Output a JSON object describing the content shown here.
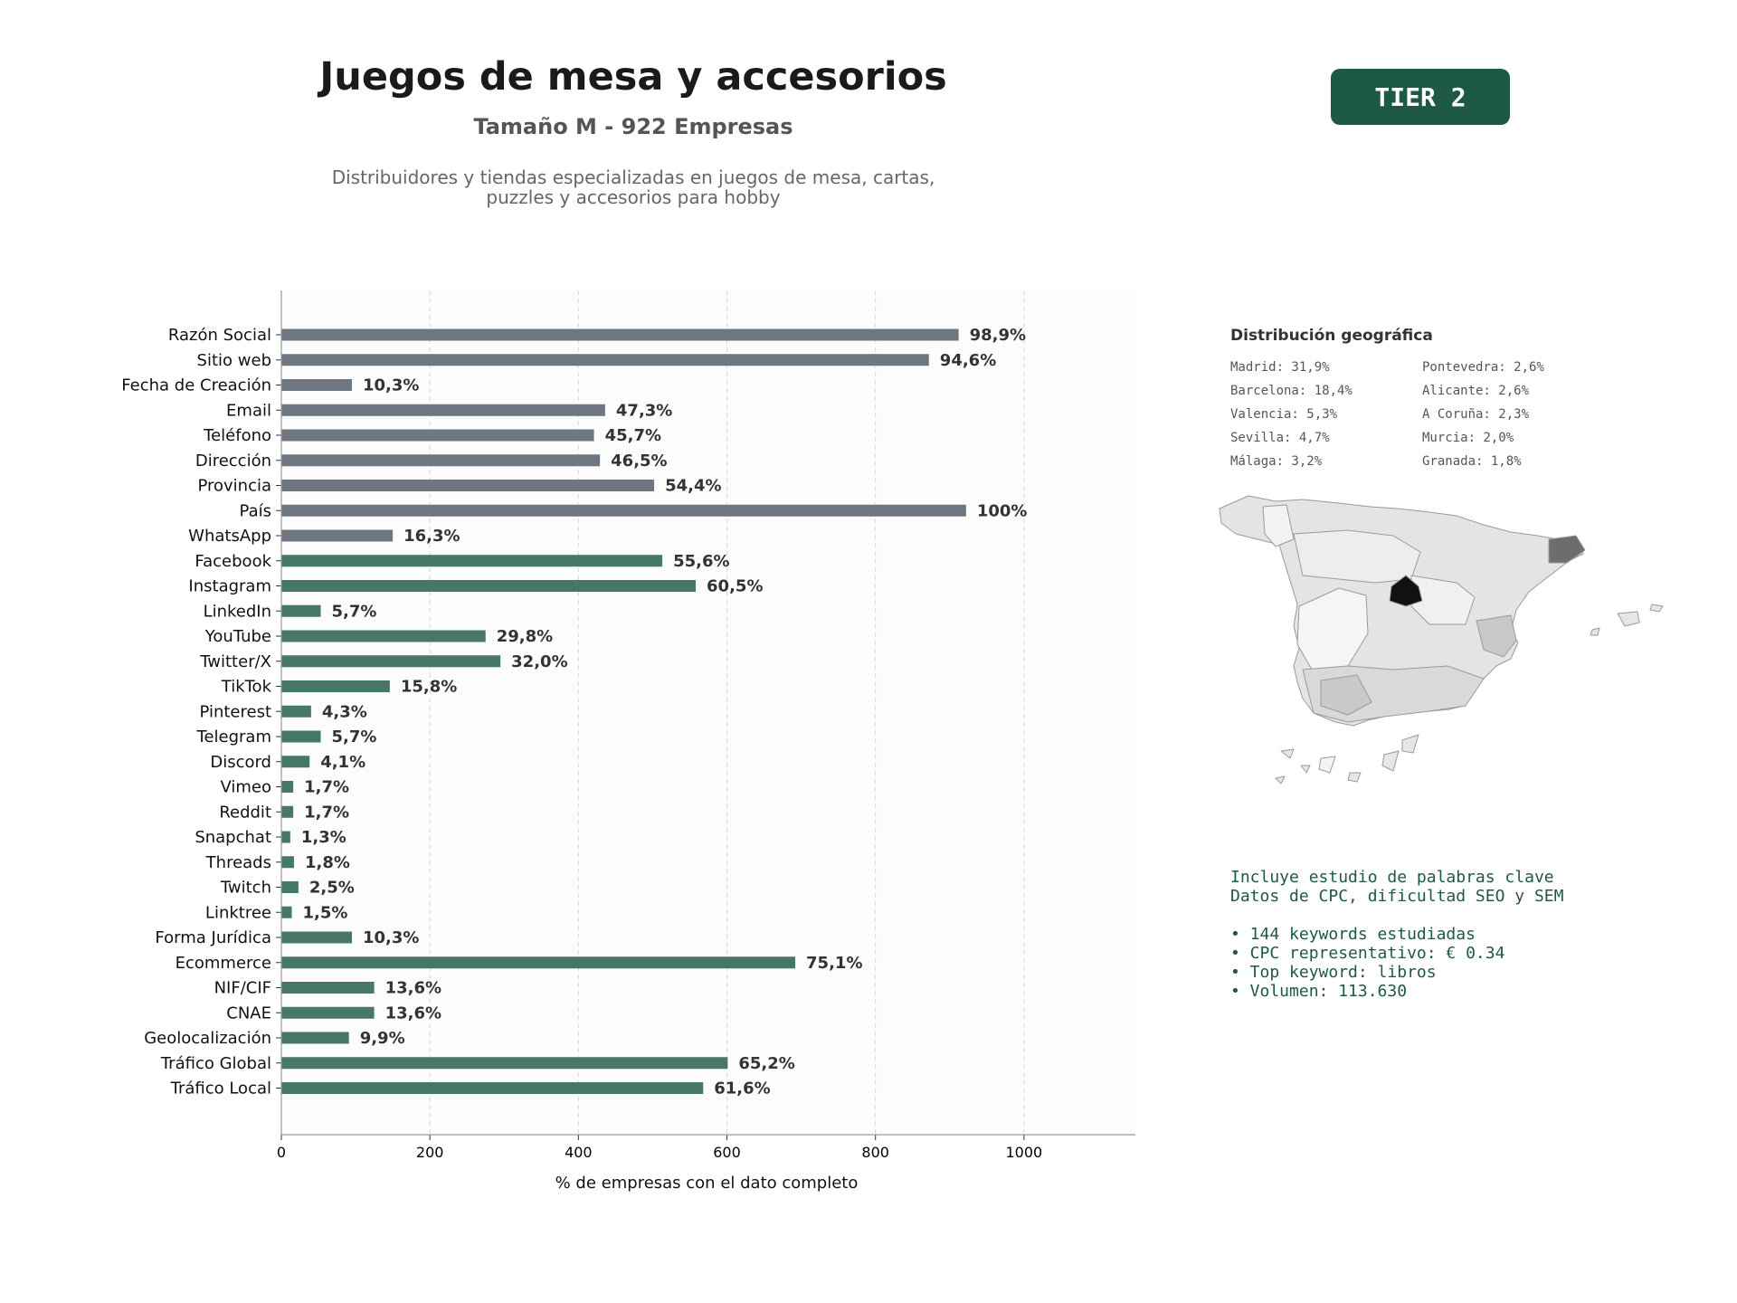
{
  "header": {
    "title": "Juegos de mesa y accesorios",
    "subtitle": "Tamaño M - 922 Empresas",
    "description_line1": "Distribuidores y tiendas especializadas en juegos de mesa, cartas,",
    "description_line2": "puzzles y accesorios para hobby",
    "tier_badge": "TIER 2"
  },
  "colors": {
    "accent": "#1e5945",
    "bar_gray": "#6e7781",
    "bar_green": "#477766",
    "plot_bg": "#fcfcfc",
    "axis": "#999999",
    "map_highlight": "#111111"
  },
  "chart_data": {
    "type": "bar",
    "orientation": "horizontal",
    "xlabel": "% de empresas con el dato completo",
    "xlim": [
      0,
      1150
    ],
    "xticks": [
      0,
      200,
      400,
      600,
      800,
      1000
    ],
    "grid": "vertical dashed",
    "categories": [
      "Razón Social",
      "Sitio web",
      "Fecha de Creación",
      "Email",
      "Teléfono",
      "Dirección",
      "Provincia",
      "País",
      "WhatsApp",
      "Facebook",
      "Instagram",
      "LinkedIn",
      "YouTube",
      "Twitter/X",
      "TikTok",
      "Pinterest",
      "Telegram",
      "Discord",
      "Vimeo",
      "Reddit",
      "Snapchat",
      "Threads",
      "Twitch",
      "Linktree",
      "Forma Jurídica",
      "Ecommerce",
      "NIF/CIF",
      "CNAE",
      "Geolocalización",
      "Tráfico Global",
      "Tráfico Local"
    ],
    "values": [
      912,
      872,
      95,
      436,
      421,
      429,
      502,
      922,
      150,
      513,
      558,
      53,
      275,
      295,
      146,
      40,
      53,
      38,
      16,
      16,
      12,
      17,
      23,
      14,
      95,
      692,
      125,
      125,
      91,
      601,
      568
    ],
    "labels": [
      "98,9%",
      "94,6%",
      "10,3%",
      "47,3%",
      "45,7%",
      "46,5%",
      "54,4%",
      "100%",
      "16,3%",
      "55,6%",
      "60,5%",
      "5,7%",
      "29,8%",
      "32,0%",
      "15,8%",
      "4,3%",
      "5,7%",
      "4,1%",
      "1,7%",
      "1,7%",
      "1,3%",
      "1,8%",
      "2,5%",
      "1,5%",
      "10,3%",
      "75,1%",
      "13,6%",
      "13,6%",
      "9,9%",
      "65,2%",
      "61,6%"
    ],
    "bar_colors": [
      "gray",
      "gray",
      "gray",
      "gray",
      "gray",
      "gray",
      "gray",
      "gray",
      "gray",
      "green",
      "green",
      "green",
      "green",
      "green",
      "green",
      "green",
      "green",
      "green",
      "green",
      "green",
      "green",
      "green",
      "green",
      "green",
      "green",
      "green",
      "green",
      "green",
      "green",
      "green",
      "green"
    ]
  },
  "geo": {
    "title": "Distribución geográfica",
    "col1": [
      "Madrid: 31,9%",
      "Barcelona: 18,4%",
      "Valencia: 5,3%",
      "Sevilla: 4,7%",
      "Málaga: 3,2%"
    ],
    "col2": [
      "Pontevedra: 2,6%",
      "Alicante: 2,6%",
      "A Coruña: 2,3%",
      "Murcia: 2,0%",
      "Granada: 1,8%"
    ]
  },
  "keywords": {
    "line1": "Incluye estudio de palabras clave",
    "line2": "Datos de CPC, dificultad SEO y SEM",
    "bullet1": "• 144 keywords estudiadas",
    "bullet2": "• CPC representativo: € 0.34",
    "bullet3": "• Top keyword: libros",
    "bullet4": "• Volumen: 113.630"
  }
}
